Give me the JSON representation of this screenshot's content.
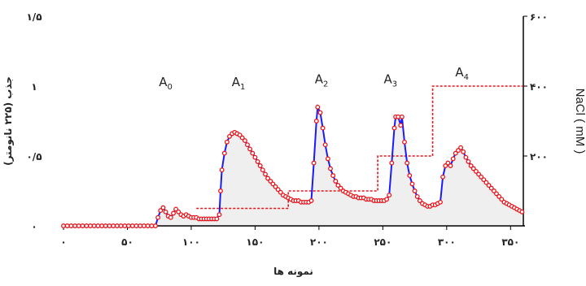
{
  "chart_data": {
    "type": "line",
    "title": "",
    "xlabel": "نمونه ها",
    "ylabel": "جذب (۲۲۵ نانومتر)",
    "y2label": "NaCl ( mM )",
    "xlim": [
      0,
      360
    ],
    "ylim": [
      0,
      1.5
    ],
    "y2lim": [
      0,
      600
    ],
    "x_ticks": [
      {
        "value": 0,
        "label": "۰"
      },
      {
        "value": 50,
        "label": "۵۰"
      },
      {
        "value": 100,
        "label": "۱۰۰"
      },
      {
        "value": 150,
        "label": "۱۵۰"
      },
      {
        "value": 200,
        "label": "۲۰۰"
      },
      {
        "value": 250,
        "label": "۲۵۰"
      },
      {
        "value": 300,
        "label": "۳۰۰"
      },
      {
        "value": 350,
        "label": "۳۵۰"
      }
    ],
    "y_ticks": [
      {
        "value": 0,
        "label": "۰"
      },
      {
        "value": 0.5,
        "label": "۰/۵"
      },
      {
        "value": 1,
        "label": "۱"
      },
      {
        "value": 1.5,
        "label": "۱/۵"
      }
    ],
    "y2_ticks": [
      {
        "value": 200,
        "label": "۲۰۰"
      },
      {
        "value": 400,
        "label": "۴۰۰"
      },
      {
        "value": 600,
        "label": "۶۰۰"
      }
    ],
    "peak_labels": [
      {
        "main": "A",
        "sub": "0",
        "x": 80,
        "y": 1.0
      },
      {
        "main": "A",
        "sub": "1",
        "x": 137,
        "y": 1.0
      },
      {
        "main": "A",
        "sub": "2",
        "x": 202,
        "y": 1.02
      },
      {
        "main": "A",
        "sub": "3",
        "x": 256,
        "y": 1.02
      },
      {
        "main": "A",
        "sub": "4",
        "x": 312,
        "y": 1.07
      }
    ],
    "absorbance_series": {
      "line_color": "#1a1aff",
      "marker_color": "#e8141b",
      "fill_color": "#efefef",
      "points": [
        [
          0,
          0
        ],
        [
          3,
          0
        ],
        [
          6,
          0
        ],
        [
          9,
          0
        ],
        [
          12,
          0
        ],
        [
          15,
          0
        ],
        [
          18,
          0
        ],
        [
          21,
          0
        ],
        [
          24,
          0
        ],
        [
          27,
          0
        ],
        [
          30,
          0
        ],
        [
          33,
          0
        ],
        [
          36,
          0
        ],
        [
          39,
          0
        ],
        [
          42,
          0
        ],
        [
          45,
          0
        ],
        [
          48,
          0
        ],
        [
          51,
          0
        ],
        [
          54,
          0
        ],
        [
          57,
          0
        ],
        [
          60,
          0
        ],
        [
          63,
          0
        ],
        [
          66,
          0
        ],
        [
          69,
          0
        ],
        [
          72,
          0
        ],
        [
          74,
          0.06
        ],
        [
          76,
          0.11
        ],
        [
          78,
          0.13
        ],
        [
          80,
          0.1
        ],
        [
          82,
          0.07
        ],
        [
          84,
          0.06
        ],
        [
          86,
          0.09
        ],
        [
          88,
          0.12
        ],
        [
          90,
          0.1
        ],
        [
          92,
          0.08
        ],
        [
          94,
          0.07
        ],
        [
          96,
          0.08
        ],
        [
          98,
          0.07
        ],
        [
          100,
          0.06
        ],
        [
          102,
          0.06
        ],
        [
          104,
          0.06
        ],
        [
          106,
          0.05
        ],
        [
          108,
          0.05
        ],
        [
          110,
          0.05
        ],
        [
          112,
          0.05
        ],
        [
          114,
          0.05
        ],
        [
          116,
          0.05
        ],
        [
          118,
          0.05
        ],
        [
          120,
          0.05
        ],
        [
          122,
          0.08
        ],
        [
          123,
          0.25
        ],
        [
          124,
          0.4
        ],
        [
          126,
          0.52
        ],
        [
          128,
          0.6
        ],
        [
          130,
          0.64
        ],
        [
          132,
          0.66
        ],
        [
          134,
          0.67
        ],
        [
          136,
          0.66
        ],
        [
          138,
          0.65
        ],
        [
          140,
          0.63
        ],
        [
          142,
          0.61
        ],
        [
          144,
          0.58
        ],
        [
          146,
          0.55
        ],
        [
          148,
          0.52
        ],
        [
          150,
          0.49
        ],
        [
          152,
          0.46
        ],
        [
          154,
          0.43
        ],
        [
          156,
          0.4
        ],
        [
          158,
          0.37
        ],
        [
          160,
          0.34
        ],
        [
          162,
          0.32
        ],
        [
          164,
          0.3
        ],
        [
          166,
          0.28
        ],
        [
          168,
          0.26
        ],
        [
          170,
          0.24
        ],
        [
          172,
          0.22
        ],
        [
          174,
          0.21
        ],
        [
          176,
          0.2
        ],
        [
          178,
          0.19
        ],
        [
          180,
          0.18
        ],
        [
          182,
          0.18
        ],
        [
          184,
          0.18
        ],
        [
          186,
          0.17
        ],
        [
          188,
          0.17
        ],
        [
          190,
          0.17
        ],
        [
          192,
          0.17
        ],
        [
          194,
          0.18
        ],
        [
          196,
          0.45
        ],
        [
          198,
          0.75
        ],
        [
          199,
          0.85
        ],
        [
          201,
          0.81
        ],
        [
          203,
          0.7
        ],
        [
          205,
          0.58
        ],
        [
          207,
          0.48
        ],
        [
          209,
          0.41
        ],
        [
          211,
          0.36
        ],
        [
          213,
          0.32
        ],
        [
          215,
          0.29
        ],
        [
          217,
          0.27
        ],
        [
          219,
          0.25
        ],
        [
          221,
          0.24
        ],
        [
          223,
          0.23
        ],
        [
          225,
          0.22
        ],
        [
          227,
          0.21
        ],
        [
          229,
          0.21
        ],
        [
          231,
          0.2
        ],
        [
          233,
          0.2
        ],
        [
          235,
          0.2
        ],
        [
          237,
          0.19
        ],
        [
          239,
          0.19
        ],
        [
          241,
          0.19
        ],
        [
          243,
          0.18
        ],
        [
          245,
          0.18
        ],
        [
          247,
          0.18
        ],
        [
          249,
          0.18
        ],
        [
          251,
          0.18
        ],
        [
          253,
          0.19
        ],
        [
          255,
          0.22
        ],
        [
          257,
          0.45
        ],
        [
          259,
          0.7
        ],
        [
          260,
          0.78
        ],
        [
          262,
          0.78
        ],
        [
          264,
          0.72
        ],
        [
          265,
          0.78
        ],
        [
          267,
          0.6
        ],
        [
          269,
          0.45
        ],
        [
          271,
          0.36
        ],
        [
          273,
          0.3
        ],
        [
          275,
          0.25
        ],
        [
          277,
          0.21
        ],
        [
          279,
          0.18
        ],
        [
          281,
          0.16
        ],
        [
          283,
          0.15
        ],
        [
          285,
          0.14
        ],
        [
          287,
          0.14
        ],
        [
          289,
          0.15
        ],
        [
          291,
          0.15
        ],
        [
          293,
          0.16
        ],
        [
          295,
          0.17
        ],
        [
          297,
          0.35
        ],
        [
          299,
          0.43
        ],
        [
          301,
          0.45
        ],
        [
          303,
          0.43
        ],
        [
          305,
          0.48
        ],
        [
          307,
          0.52
        ],
        [
          309,
          0.54
        ],
        [
          311,
          0.56
        ],
        [
          313,
          0.53
        ],
        [
          315,
          0.49
        ],
        [
          317,
          0.46
        ],
        [
          319,
          0.43
        ],
        [
          321,
          0.41
        ],
        [
          323,
          0.39
        ],
        [
          325,
          0.37
        ],
        [
          327,
          0.35
        ],
        [
          329,
          0.33
        ],
        [
          331,
          0.31
        ],
        [
          333,
          0.29
        ],
        [
          335,
          0.27
        ],
        [
          337,
          0.25
        ],
        [
          339,
          0.23
        ],
        [
          341,
          0.21
        ],
        [
          343,
          0.19
        ],
        [
          345,
          0.17
        ],
        [
          347,
          0.16
        ],
        [
          349,
          0.15
        ],
        [
          351,
          0.14
        ],
        [
          353,
          0.13
        ],
        [
          355,
          0.12
        ],
        [
          357,
          0.11
        ],
        [
          359,
          0.1
        ]
      ]
    },
    "nacl_step_series": {
      "axis": "y2",
      "color": "#e8141b",
      "style": "dashed",
      "points": [
        [
          104,
          50
        ],
        [
          176,
          50
        ],
        [
          176,
          100
        ],
        [
          246,
          100
        ],
        [
          246,
          200
        ],
        [
          289,
          200
        ],
        [
          289,
          400
        ],
        [
          360,
          400
        ]
      ]
    }
  }
}
